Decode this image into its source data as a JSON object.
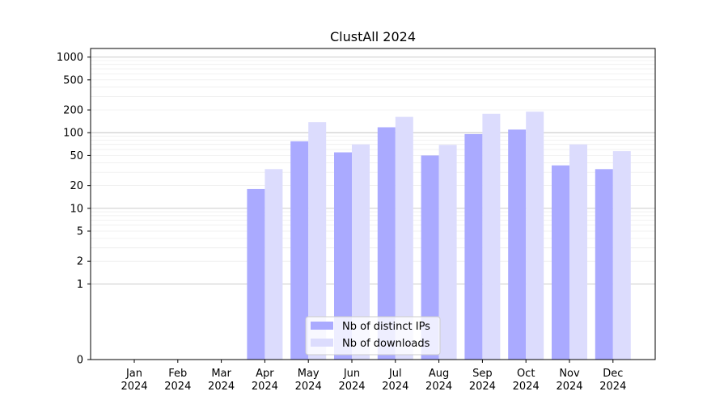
{
  "chart_data": {
    "type": "bar",
    "title": "ClustAll 2024",
    "xlabel": "",
    "ylabel": "",
    "yscale": "symlog",
    "ylim": [
      0,
      1300
    ],
    "grid": "horizontal",
    "legend_position": "bottom-center",
    "categories": [
      {
        "month": "Jan",
        "year": "2024"
      },
      {
        "month": "Feb",
        "year": "2024"
      },
      {
        "month": "Mar",
        "year": "2024"
      },
      {
        "month": "Apr",
        "year": "2024"
      },
      {
        "month": "May",
        "year": "2024"
      },
      {
        "month": "Jun",
        "year": "2024"
      },
      {
        "month": "Jul",
        "year": "2024"
      },
      {
        "month": "Aug",
        "year": "2024"
      },
      {
        "month": "Sep",
        "year": "2024"
      },
      {
        "month": "Oct",
        "year": "2024"
      },
      {
        "month": "Nov",
        "year": "2024"
      },
      {
        "month": "Dec",
        "year": "2024"
      }
    ],
    "y_ticks": [
      0,
      1,
      2,
      5,
      10,
      20,
      50,
      100,
      200,
      500,
      1000
    ],
    "series": [
      {
        "name": "Nb of distinct IPs",
        "color": "#aaaaff",
        "values": [
          0,
          0,
          0,
          18,
          77,
          55,
          118,
          50,
          96,
          110,
          37,
          33
        ]
      },
      {
        "name": "Nb of downloads",
        "color": "#dcdcfd",
        "values": [
          0,
          0,
          0,
          33,
          138,
          70,
          162,
          69,
          178,
          190,
          70,
          57
        ]
      }
    ]
  }
}
